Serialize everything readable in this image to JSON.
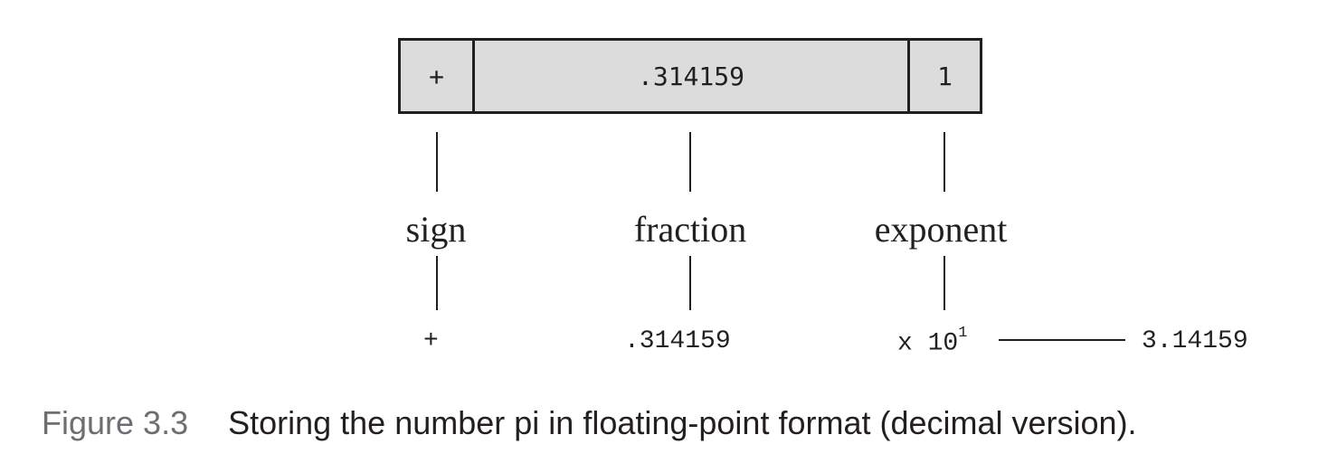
{
  "box": {
    "sign": "+",
    "fraction": ".314159",
    "exponent": "1"
  },
  "labels": {
    "sign": "sign",
    "fraction": "fraction",
    "exponent": "exponent"
  },
  "values": {
    "sign": "+",
    "fraction": ".314159",
    "exponent_prefix": "x 10",
    "exponent_power": "1",
    "result": "3.14159"
  },
  "caption": {
    "number": "Figure 3.3",
    "text": "Storing the number pi in floating-point format (decimal version)."
  }
}
